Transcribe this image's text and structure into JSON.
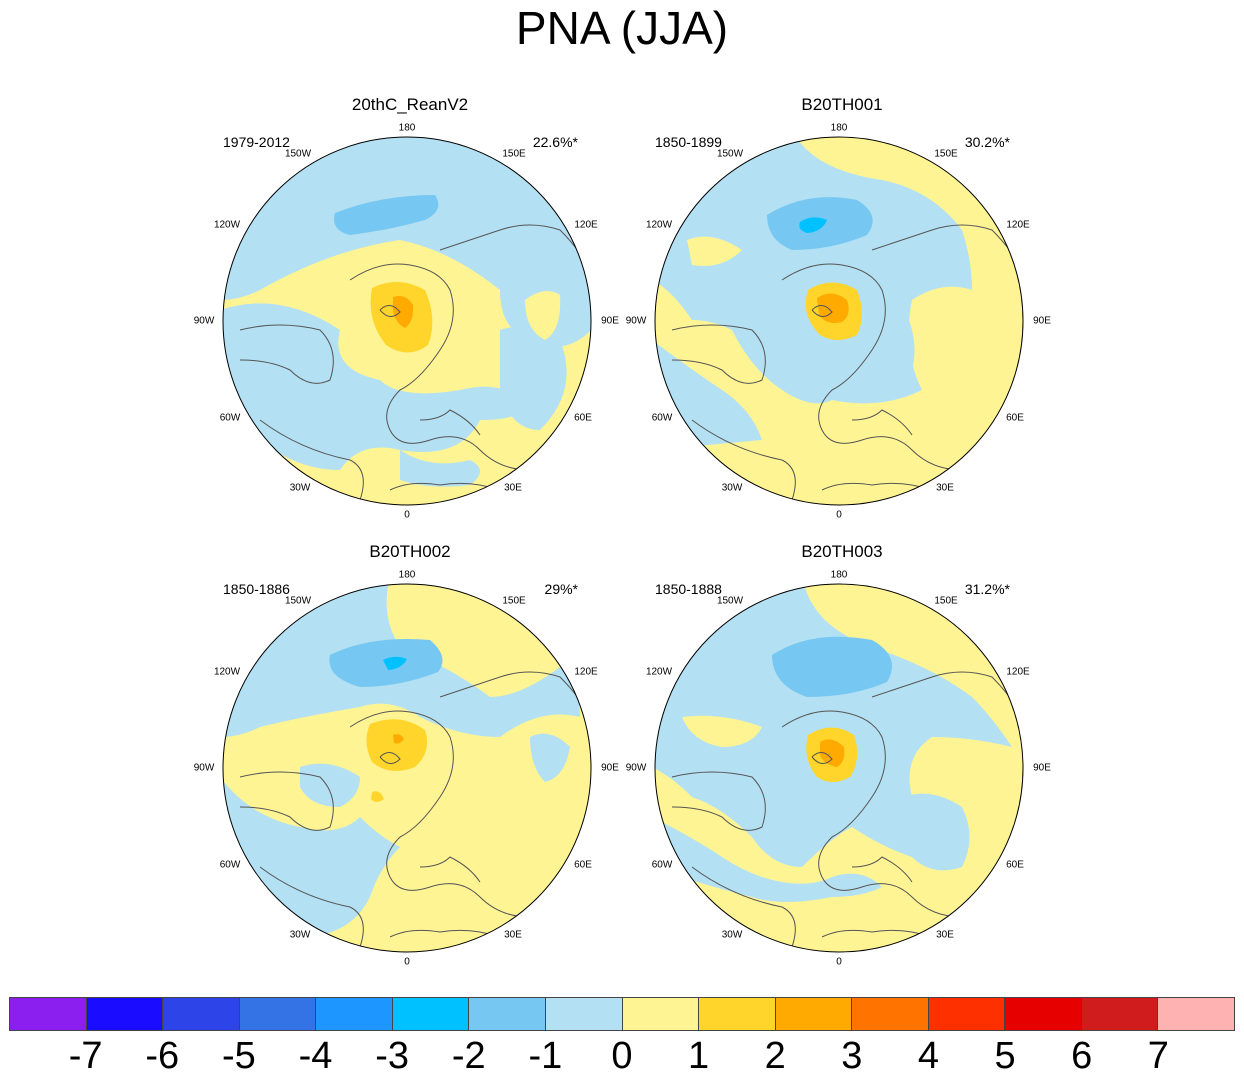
{
  "title": "PNA (JJA)",
  "lon_labels": [
    "180",
    "150E",
    "120E",
    "90E",
    "60E",
    "30E",
    "0",
    "30W",
    "60W",
    "90W",
    "120W",
    "150W"
  ],
  "panels": [
    {
      "name": "20thC_ReanV2",
      "period": "1979-2012",
      "percent": "22.6%*"
    },
    {
      "name": "B20TH001",
      "period": "1850-1899",
      "percent": "30.2%*"
    },
    {
      "name": "B20TH002",
      "period": "1850-1886",
      "percent": "29%*"
    },
    {
      "name": "B20TH003",
      "period": "1850-1888",
      "percent": "31.2%*"
    }
  ],
  "colorbar": {
    "colors": [
      "#8b1fef",
      "#1a0dff",
      "#2d45e8",
      "#3373e6",
      "#1e96ff",
      "#00c1ff",
      "#76c8f2",
      "#b3e0f2",
      "#fff494",
      "#ffd52b",
      "#ffaa00",
      "#ff7300",
      "#ff3000",
      "#e60000",
      "#d01c1c",
      "#ffb2b2"
    ],
    "labels": [
      "-7",
      "-6",
      "-5",
      "-4",
      "-3",
      "-2",
      "-1",
      "0",
      "1",
      "2",
      "3",
      "4",
      "5",
      "6",
      "7"
    ]
  },
  "palette": {
    "negative_light": "#b3e0f2",
    "negative_mid": "#76c8f2",
    "negative_strong": "#00c1ff",
    "positive_light": "#fff494",
    "positive_mid": "#ffd52b",
    "positive_strong": "#ffaa00",
    "coast": "#555555"
  }
}
